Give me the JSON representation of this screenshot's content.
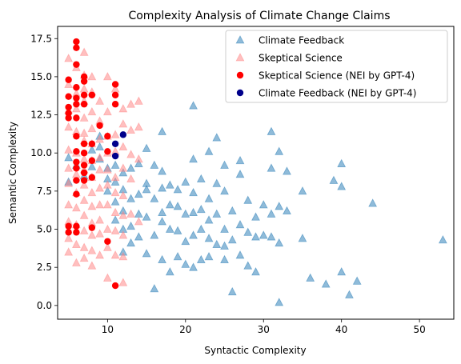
{
  "chart_data": {
    "type": "scatter",
    "title": "Complexity Analysis of Climate Change Claims",
    "xlabel": "Syntactic Complexity",
    "ylabel": "Semantic Complexity",
    "xlim": [
      3.6,
      54.4
    ],
    "ylim": [
      -0.9,
      18.3
    ],
    "xticks": [
      10,
      20,
      30,
      40,
      50
    ],
    "yticks": [
      0.0,
      2.5,
      5.0,
      7.5,
      10.0,
      12.5,
      15.0,
      17.5
    ],
    "ytick_labels": [
      "0.0",
      "2.5",
      "5.0",
      "7.5",
      "10.0",
      "12.5",
      "15.0",
      "17.5"
    ],
    "grid": false,
    "legend_position": "top-right",
    "series": [
      {
        "name": "Climate Feedback",
        "marker": "triangle",
        "color": "#1f77b4",
        "opacity": 0.5,
        "points": [
          [
            5,
            9.7
          ],
          [
            5,
            8.1
          ],
          [
            6,
            9.2
          ],
          [
            7,
            8.5
          ],
          [
            8,
            10.2
          ],
          [
            8,
            9.1
          ],
          [
            9,
            11.1
          ],
          [
            9,
            10.4
          ],
          [
            9,
            9.6
          ],
          [
            10,
            9.0
          ],
          [
            10,
            8.3
          ],
          [
            10,
            7.5
          ],
          [
            11,
            9.2
          ],
          [
            11,
            8.1
          ],
          [
            11,
            6.8
          ],
          [
            11,
            5.6
          ],
          [
            12,
            8.7
          ],
          [
            12,
            7.6
          ],
          [
            12,
            6.2
          ],
          [
            12,
            5.0
          ],
          [
            12,
            3.5
          ],
          [
            13,
            9.0
          ],
          [
            13,
            7.0
          ],
          [
            13,
            5.2
          ],
          [
            13,
            4.1
          ],
          [
            14,
            9.3
          ],
          [
            14,
            7.3
          ],
          [
            14,
            6.0
          ],
          [
            14,
            4.5
          ],
          [
            15,
            10.3
          ],
          [
            15,
            8.0
          ],
          [
            15,
            7.6
          ],
          [
            15,
            5.8
          ],
          [
            15,
            3.4
          ],
          [
            16,
            9.2
          ],
          [
            16,
            7.0
          ],
          [
            16,
            4.6
          ],
          [
            16,
            1.1
          ],
          [
            17,
            11.4
          ],
          [
            17,
            8.8
          ],
          [
            17,
            7.7
          ],
          [
            17,
            6.1
          ],
          [
            17,
            5.5
          ],
          [
            17,
            3.0
          ],
          [
            18,
            7.9
          ],
          [
            18,
            6.6
          ],
          [
            18,
            5.0
          ],
          [
            18,
            2.2
          ],
          [
            19,
            7.6
          ],
          [
            19,
            6.5
          ],
          [
            19,
            4.9
          ],
          [
            19,
            3.2
          ],
          [
            20,
            8.1
          ],
          [
            20,
            6.0
          ],
          [
            20,
            4.2
          ],
          [
            20,
            2.7
          ],
          [
            21,
            13.1
          ],
          [
            21,
            9.6
          ],
          [
            21,
            7.4
          ],
          [
            21,
            6.1
          ],
          [
            21,
            4.6
          ],
          [
            21,
            2.5
          ],
          [
            22,
            8.3
          ],
          [
            22,
            6.3
          ],
          [
            22,
            5.0
          ],
          [
            22,
            3.0
          ],
          [
            23,
            10.1
          ],
          [
            23,
            7.0
          ],
          [
            23,
            5.6
          ],
          [
            23,
            4.4
          ],
          [
            23,
            3.2
          ],
          [
            24,
            11.0
          ],
          [
            24,
            8.0
          ],
          [
            24,
            6.0
          ],
          [
            24,
            4.0
          ],
          [
            25,
            9.2
          ],
          [
            25,
            7.5
          ],
          [
            25,
            5.0
          ],
          [
            25,
            3.9
          ],
          [
            25,
            3.0
          ],
          [
            26,
            6.2
          ],
          [
            26,
            4.3
          ],
          [
            26,
            0.9
          ],
          [
            27,
            9.5
          ],
          [
            27,
            8.6
          ],
          [
            27,
            5.3
          ],
          [
            27,
            3.3
          ],
          [
            28,
            6.9
          ],
          [
            28,
            4.8
          ],
          [
            28,
            2.6
          ],
          [
            29,
            5.8
          ],
          [
            29,
            4.5
          ],
          [
            29,
            2.2
          ],
          [
            30,
            6.6
          ],
          [
            30,
            4.6
          ],
          [
            31,
            11.4
          ],
          [
            31,
            9.0
          ],
          [
            31,
            6.0
          ],
          [
            31,
            4.5
          ],
          [
            32,
            10.1
          ],
          [
            32,
            6.5
          ],
          [
            32,
            4.1
          ],
          [
            32,
            0.2
          ],
          [
            33,
            8.8
          ],
          [
            33,
            6.2
          ],
          [
            35,
            7.5
          ],
          [
            35,
            4.4
          ],
          [
            36,
            1.8
          ],
          [
            38,
            1.4
          ],
          [
            39,
            8.2
          ],
          [
            40,
            9.3
          ],
          [
            40,
            7.8
          ],
          [
            40,
            2.2
          ],
          [
            41,
            0.7
          ],
          [
            42,
            1.6
          ],
          [
            44,
            6.7
          ],
          [
            53,
            4.3
          ]
        ]
      },
      {
        "name": "Skeptical Science",
        "marker": "triangle",
        "color": "#ff7f7f",
        "opacity": 0.5,
        "points": [
          [
            5,
            16.2
          ],
          [
            5,
            14.5
          ],
          [
            5,
            12.8
          ],
          [
            5,
            11.7
          ],
          [
            5,
            10.2
          ],
          [
            5,
            9.0
          ],
          [
            5,
            8.0
          ],
          [
            5,
            6.6
          ],
          [
            5,
            5.5
          ],
          [
            5,
            4.4
          ],
          [
            5,
            3.5
          ],
          [
            6,
            15.6
          ],
          [
            6,
            13.9
          ],
          [
            6,
            12.9
          ],
          [
            6,
            11.4
          ],
          [
            6,
            10.0
          ],
          [
            6,
            8.6
          ],
          [
            6,
            7.4
          ],
          [
            6,
            6.4
          ],
          [
            6,
            5.3
          ],
          [
            6,
            4.0
          ],
          [
            6,
            2.8
          ],
          [
            7,
            16.6
          ],
          [
            7,
            15.1
          ],
          [
            7,
            14.2
          ],
          [
            7,
            13.4
          ],
          [
            7,
            12.3
          ],
          [
            7,
            11.3
          ],
          [
            7,
            10.8
          ],
          [
            7,
            9.6
          ],
          [
            7,
            8.9
          ],
          [
            7,
            7.9
          ],
          [
            7,
            6.9
          ],
          [
            7,
            5.9
          ],
          [
            7,
            4.9
          ],
          [
            7,
            3.8
          ],
          [
            7,
            3.1
          ],
          [
            8,
            15.0
          ],
          [
            8,
            14.0
          ],
          [
            8,
            12.7
          ],
          [
            8,
            11.6
          ],
          [
            8,
            10.6
          ],
          [
            8,
            9.5
          ],
          [
            8,
            8.4
          ],
          [
            8,
            7.4
          ],
          [
            8,
            6.5
          ],
          [
            8,
            5.4
          ],
          [
            8,
            4.6
          ],
          [
            8,
            3.6
          ],
          [
            8,
            2.6
          ],
          [
            9,
            13.4
          ],
          [
            9,
            12.1
          ],
          [
            9,
            10.9
          ],
          [
            9,
            9.7
          ],
          [
            9,
            8.9
          ],
          [
            9,
            7.7
          ],
          [
            9,
            6.6
          ],
          [
            9,
            5.6
          ],
          [
            9,
            4.7
          ],
          [
            9,
            3.3
          ],
          [
            10,
            15.0
          ],
          [
            10,
            12.7
          ],
          [
            10,
            11.1
          ],
          [
            10,
            10.0
          ],
          [
            10,
            8.9
          ],
          [
            10,
            7.9
          ],
          [
            10,
            6.6
          ],
          [
            10,
            5.0
          ],
          [
            10,
            3.8
          ],
          [
            10,
            1.8
          ],
          [
            11,
            14.2
          ],
          [
            11,
            11.2
          ],
          [
            11,
            10.1
          ],
          [
            11,
            8.4
          ],
          [
            11,
            7.4
          ],
          [
            11,
            6.1
          ],
          [
            11,
            4.9
          ],
          [
            11,
            3.3
          ],
          [
            12,
            12.9
          ],
          [
            12,
            11.9
          ],
          [
            12,
            10.4
          ],
          [
            12,
            9.0
          ],
          [
            12,
            7.2
          ],
          [
            12,
            5.9
          ],
          [
            12,
            4.6
          ],
          [
            12,
            3.2
          ],
          [
            12,
            1.5
          ],
          [
            13,
            13.2
          ],
          [
            13,
            11.5
          ],
          [
            13,
            9.9
          ],
          [
            13,
            8.3
          ],
          [
            13,
            6.0
          ],
          [
            14,
            13.4
          ],
          [
            14,
            11.7
          ],
          [
            14,
            9.6
          ],
          [
            14,
            5.5
          ]
        ]
      },
      {
        "name": "Skeptical Science (NEI by GPT-4)",
        "marker": "circle",
        "color": "#ff0000",
        "opacity": 1,
        "points": [
          [
            5,
            14.8
          ],
          [
            5,
            13.7
          ],
          [
            5,
            13.0
          ],
          [
            5,
            12.6
          ],
          [
            5,
            12.3
          ],
          [
            5,
            5.2
          ],
          [
            5,
            4.8
          ],
          [
            6,
            17.3
          ],
          [
            6,
            16.9
          ],
          [
            6,
            15.8
          ],
          [
            6,
            14.3
          ],
          [
            6,
            13.6
          ],
          [
            6,
            13.2
          ],
          [
            6,
            12.3
          ],
          [
            6,
            11.1
          ],
          [
            6,
            10.1
          ],
          [
            6,
            9.4
          ],
          [
            6,
            9.0
          ],
          [
            6,
            8.2
          ],
          [
            6,
            7.3
          ],
          [
            6,
            5.2
          ],
          [
            6,
            4.8
          ],
          [
            7,
            15.0
          ],
          [
            7,
            14.7
          ],
          [
            7,
            13.8
          ],
          [
            7,
            13.2
          ],
          [
            7,
            10.6
          ],
          [
            7,
            10.0
          ],
          [
            7,
            9.2
          ],
          [
            7,
            8.7
          ],
          [
            7,
            8.2
          ],
          [
            8,
            13.8
          ],
          [
            8,
            10.6
          ],
          [
            8,
            9.5
          ],
          [
            8,
            8.4
          ],
          [
            8,
            5.1
          ],
          [
            9,
            11.8
          ],
          [
            10,
            11.1
          ],
          [
            10,
            10.1
          ],
          [
            10,
            4.2
          ],
          [
            11,
            14.5
          ],
          [
            11,
            13.8
          ],
          [
            11,
            13.2
          ],
          [
            11,
            1.3
          ]
        ]
      },
      {
        "name": "Climate Feedback (NEI by GPT-4)",
        "marker": "circle",
        "color": "#00008b",
        "opacity": 1,
        "points": [
          [
            11,
            10.6
          ],
          [
            11,
            9.8
          ],
          [
            12,
            11.2
          ]
        ]
      }
    ]
  }
}
